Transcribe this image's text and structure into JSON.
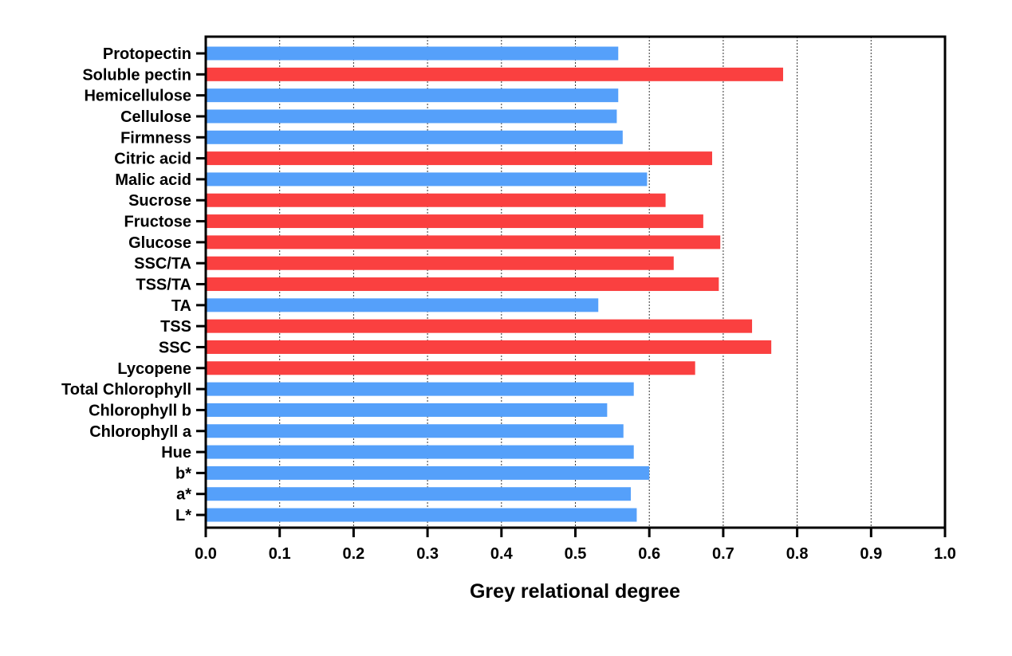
{
  "chart_data": {
    "type": "bar",
    "orientation": "horizontal",
    "title": "",
    "xlabel": "Grey relational degree",
    "ylabel": "",
    "xlim": [
      0,
      1.0
    ],
    "xticks": [
      "0.0",
      "0.1",
      "0.2",
      "0.3",
      "0.4",
      "0.5",
      "0.6",
      "0.7",
      "0.8",
      "0.9",
      "1.0"
    ],
    "grid": "vertical dotted",
    "categories": [
      "Protopectin",
      "Soluble pectin",
      "Hemicellulose",
      "Cellulose",
      "Firmness",
      "Citric acid",
      "Malic acid",
      "Sucrose",
      "Fructose",
      "Glucose",
      "SSC/TA",
      "TSS/TA",
      "TA",
      "TSS",
      "SSC",
      "Lycopene",
      "Total Chlorophyll",
      "Chlorophyll b",
      "Chlorophyll a",
      "Hue",
      "b*",
      "a*",
      "L*"
    ],
    "values": [
      0.558,
      0.781,
      0.558,
      0.556,
      0.564,
      0.685,
      0.597,
      0.622,
      0.673,
      0.696,
      0.633,
      0.694,
      0.531,
      0.739,
      0.765,
      0.662,
      0.579,
      0.543,
      0.565,
      0.579,
      0.6,
      0.575,
      0.583
    ],
    "highlight": [
      false,
      true,
      false,
      false,
      false,
      true,
      false,
      true,
      true,
      true,
      true,
      true,
      false,
      true,
      true,
      true,
      false,
      false,
      false,
      false,
      false,
      false,
      false
    ],
    "colors": {
      "normal": "#55A0FA",
      "highlight": "#FA4040"
    }
  }
}
